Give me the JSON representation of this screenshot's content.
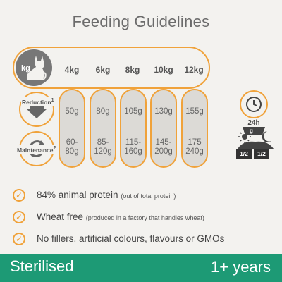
{
  "title": "Feeding Guidelines",
  "weight_icon_label": "kg",
  "weights": [
    "4kg",
    "6kg",
    "8kg",
    "10kg",
    "12kg"
  ],
  "rows": {
    "reduction": {
      "label": "Reduction",
      "sup": "1",
      "values": [
        "50g",
        "80g",
        "105g",
        "130g",
        "155g"
      ]
    },
    "maintenance": {
      "label": "Maintenance",
      "sup": "2",
      "values": [
        [
          "60-",
          "80g"
        ],
        [
          "85-",
          "120g"
        ],
        [
          "115-",
          "160g"
        ],
        [
          "145-",
          "200g"
        ],
        [
          "175",
          "240g"
        ]
      ]
    }
  },
  "right_panel": {
    "period": "24h",
    "bowl_unit": "g",
    "split": [
      "1/2",
      "1/2"
    ]
  },
  "bullets": [
    {
      "main": "84% animal protein",
      "note": "(out of total protein)"
    },
    {
      "main": "Wheat free",
      "note": "(produced in a factory that handles wheat)"
    },
    {
      "main": "No fillers, artificial colours, flavours or GMOs",
      "note": ""
    }
  ],
  "footer": {
    "left": "Sterilised",
    "right": "1+ years"
  },
  "colors": {
    "accent": "#f0a23a",
    "footer_bg": "#1d9a75",
    "column_fill": "#dcdad6",
    "background": "#f3f2ef"
  }
}
